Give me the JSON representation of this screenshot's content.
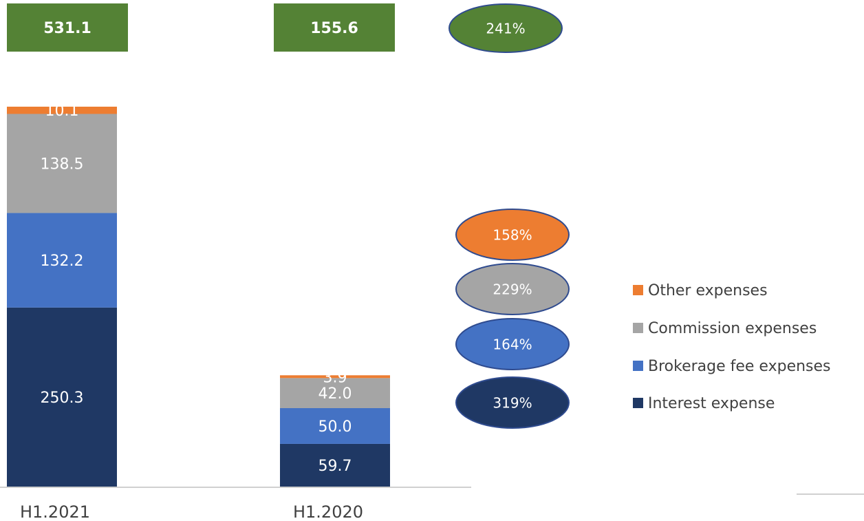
{
  "chart_data": {
    "type": "stacked_bar",
    "categories": [
      "H1.2021",
      "H1.2020"
    ],
    "totals": [
      531.1,
      155.6
    ],
    "total_color": "#548235",
    "total_growth": 241,
    "total_growth_label": "241%",
    "series": [
      {
        "name": "Interest expense",
        "color": "#1f3864",
        "values": [
          250.3,
          59.7
        ],
        "value_labels": [
          "250.3",
          "59.7"
        ],
        "growth": 319,
        "growth_label": "319%"
      },
      {
        "name": "Brokerage fee expenses",
        "color": "#4472c4",
        "values": [
          132.2,
          50.0
        ],
        "value_labels": [
          "132.2",
          "50.0"
        ],
        "growth": 164,
        "growth_label": "164%"
      },
      {
        "name": "Commission expenses",
        "color": "#a5a5a5",
        "values": [
          138.5,
          42.0
        ],
        "value_labels": [
          "138.5",
          "42.0"
        ],
        "growth": 229,
        "growth_label": "229%"
      },
      {
        "name": "Other expenses",
        "color": "#ed7d31",
        "values": [
          10.1,
          3.9
        ],
        "value_labels": [
          "10.1",
          "3.9"
        ],
        "growth": 158,
        "growth_label": "158%"
      }
    ]
  }
}
